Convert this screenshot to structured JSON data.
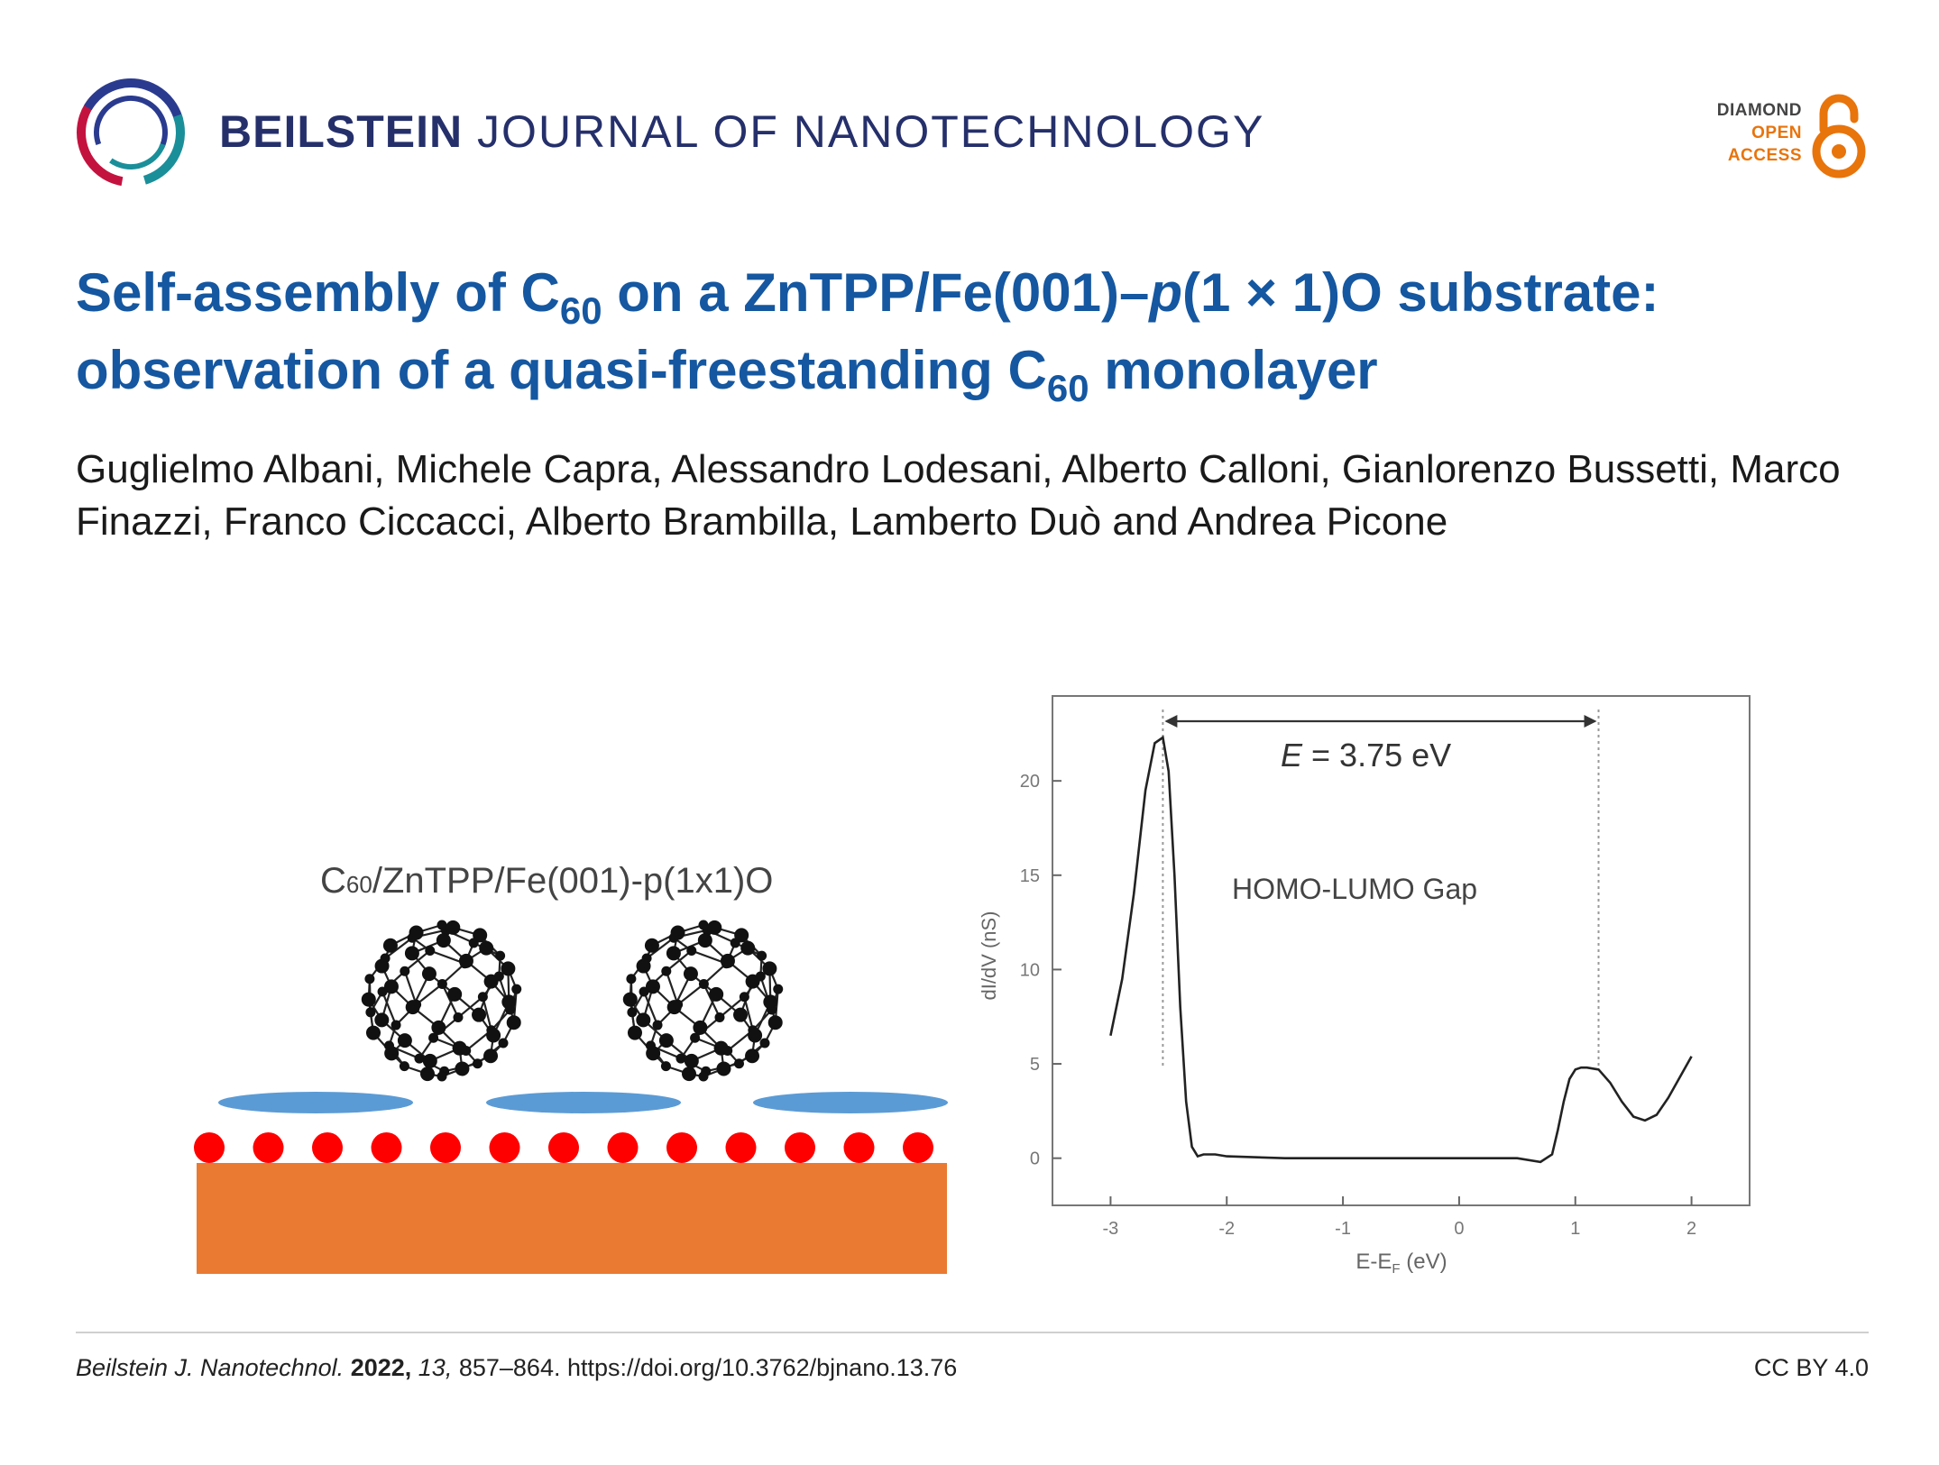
{
  "header": {
    "journal_bold": "BEILSTEIN",
    "journal_rest": "JOURNAL OF NANOTECHNOLOGY",
    "oa_line1": "DIAMOND",
    "oa_line2": "OPEN",
    "oa_line3": "ACCESS",
    "colors": {
      "journal": "#25306b",
      "oa": "#e8740c"
    }
  },
  "title": {
    "part1": "Self-assembly of C",
    "sub1": "60",
    "part2": " on a ZnTPP/Fe(001)–",
    "italic_p": "p",
    "part3": "(1 × 1)O substrate: observation of a quasi-freestanding C",
    "sub2": "60",
    "part4": " monolayer",
    "color": "#1557a0"
  },
  "authors": "Guglielmo Albani, Michele Capra, Alessandro Lodesani, Alberto Calloni, Gianlorenzo Bussetti, Marco Finazzi, Franco Ciccacci, Alberto Brambilla, Lamberto Duò and Andrea Picone",
  "figure": {
    "schematic_label_C": "C",
    "schematic_label_sub": "60",
    "schematic_label_rest": "/ZnTPP/Fe(001)-p(1x1)O",
    "colors": {
      "substrate": "#ea7a31",
      "oxygen": "#ff0000",
      "porphyrin": "#5b9bd5"
    }
  },
  "chart_data": {
    "type": "line",
    "title": "",
    "xlabel_main": "E-E",
    "xlabel_sub": "F",
    "xlabel_unit": " (eV)",
    "ylabel": "dI/dV (nS)",
    "xlim": [
      -3.5,
      2.5
    ],
    "ylim": [
      -2.5,
      24.5
    ],
    "xticks": [
      "-3",
      "-2",
      "-1",
      "0",
      "1",
      "2"
    ],
    "yticks": [
      "0",
      "5",
      "10",
      "15",
      "20"
    ],
    "annotation_gap_prefix": "E",
    "annotation_gap_value": " = 3.75 eV",
    "annotation_label": "HOMO-LUMO Gap",
    "gap_markers_x": [
      -2.55,
      1.2
    ],
    "series": [
      {
        "x": [
          -3.0,
          -2.9,
          -2.8,
          -2.7,
          -2.62,
          -2.55,
          -2.5,
          -2.45,
          -2.4,
          -2.35,
          -2.3,
          -2.25,
          -2.2,
          -2.1,
          -2.0,
          -1.5,
          -1.0,
          -0.5,
          0.0,
          0.5,
          0.7,
          0.8,
          0.85,
          0.9,
          0.95,
          1.0,
          1.05,
          1.1,
          1.2,
          1.3,
          1.4,
          1.5,
          1.6,
          1.7,
          1.8,
          1.9,
          2.0
        ],
        "y": [
          6.5,
          9.5,
          14.0,
          19.5,
          22.0,
          22.3,
          20.5,
          15.0,
          8.0,
          3.0,
          0.6,
          0.1,
          0.2,
          0.2,
          0.1,
          0.0,
          0.0,
          0.0,
          0.0,
          0.0,
          -0.2,
          0.2,
          1.5,
          3.0,
          4.2,
          4.7,
          4.8,
          4.8,
          4.7,
          4.0,
          3.0,
          2.2,
          2.0,
          2.3,
          3.2,
          4.3,
          5.4
        ]
      }
    ]
  },
  "footer": {
    "journal_abbrev": "Beilstein J. Nanotechnol.",
    "year": "2022,",
    "volume": "13,",
    "pages_doi": "857–864. https://doi.org/10.3762/bjnano.13.76",
    "license": "CC BY 4.0"
  }
}
